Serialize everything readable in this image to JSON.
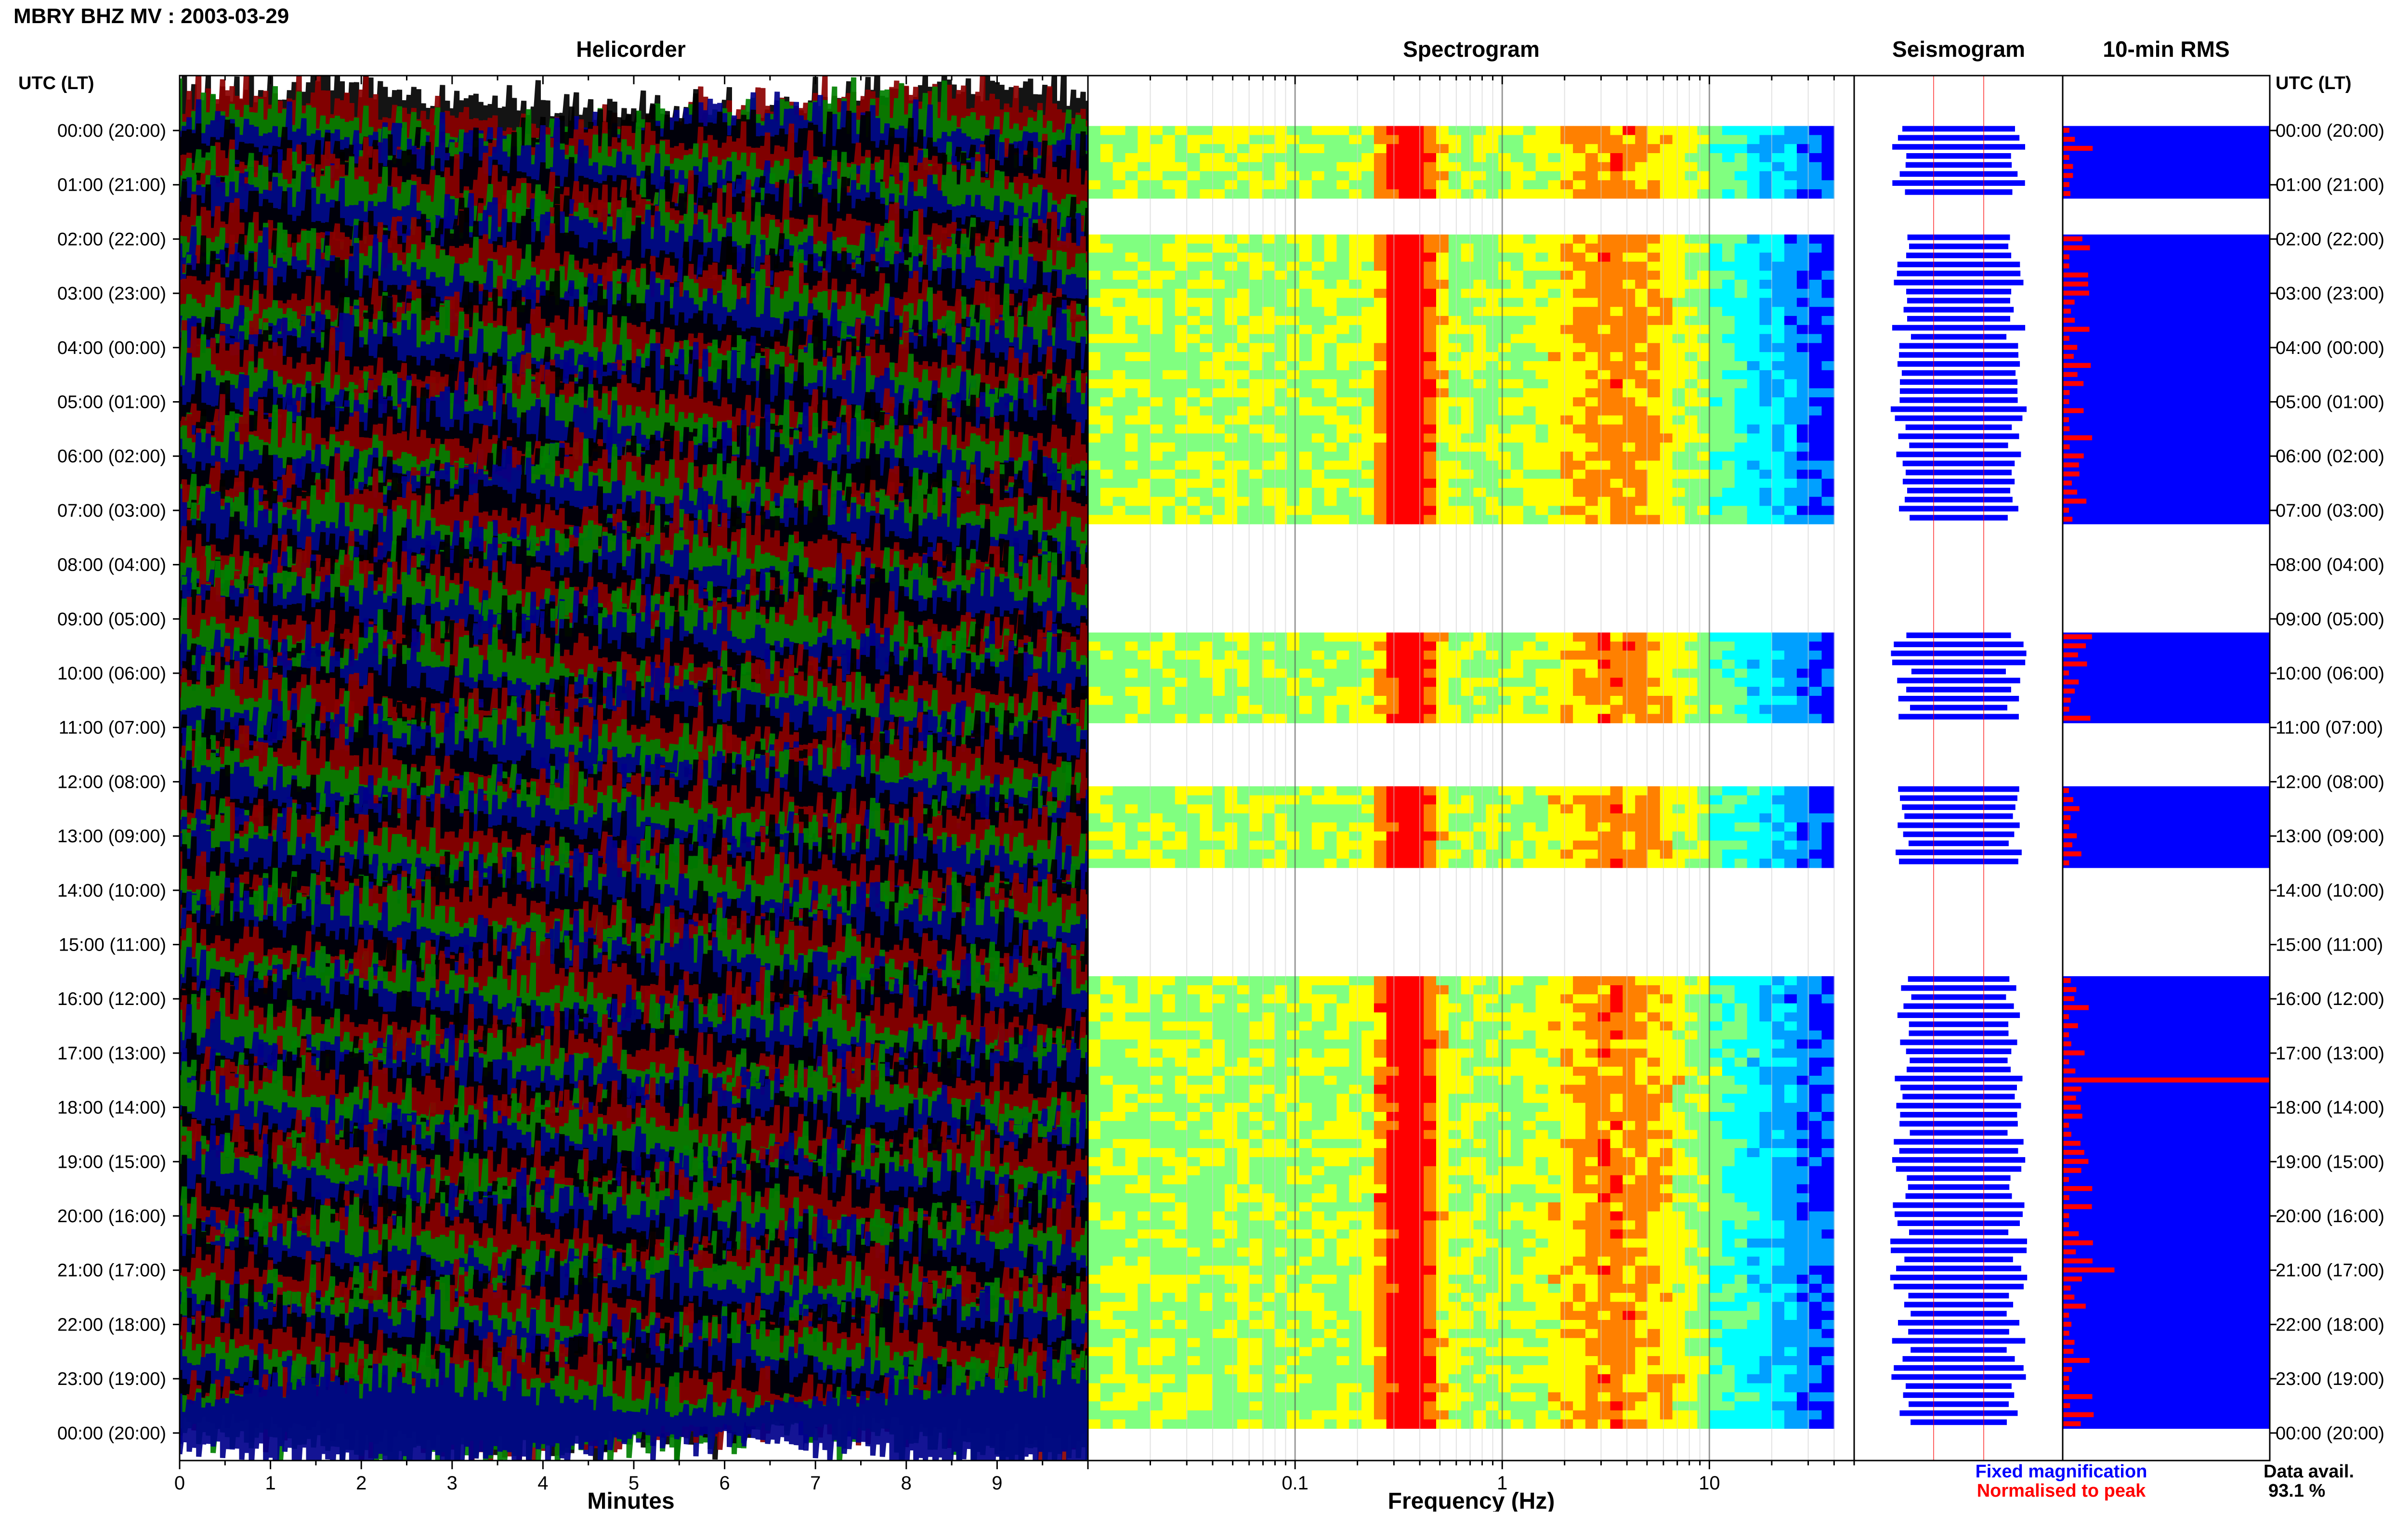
{
  "title": "MBRY BHZ MV : 2003-03-29",
  "panels": {
    "helicorder": "Helicorder",
    "spectrogram": "Spectrogram",
    "seismogram": "Seismogram",
    "rms": "10-min RMS"
  },
  "time_header_left": "UTC (LT)",
  "time_header_right": "UTC (LT)",
  "footer": {
    "fixed_label": "Fixed magnification",
    "normalised_label": "Normalised to peak",
    "data_avail_label": "Data avail.",
    "data_avail_value": "93.1 %"
  },
  "colors": {
    "helicorder_traces": [
      "#000000",
      "#8b0000",
      "#008000",
      "#00008b"
    ],
    "fixed": "#0000ff",
    "normalised": "#ff0000"
  },
  "chart_data": [
    {
      "type": "line",
      "title": "Helicorder",
      "xlabel": "Minutes",
      "x_ticks": [
        "0",
        "1",
        "2",
        "3",
        "4",
        "5",
        "6",
        "7",
        "8",
        "9"
      ],
      "xlim": [
        0,
        10
      ],
      "row_labels": [
        "00:00 (20:00)",
        "01:00 (21:00)",
        "02:00 (22:00)",
        "03:00 (23:00)",
        "04:00 (00:00)",
        "05:00 (01:00)",
        "06:00 (02:00)",
        "07:00 (03:00)",
        "08:00 (04:00)",
        "09:00 (05:00)",
        "10:00 (06:00)",
        "11:00 (07:00)",
        "12:00 (08:00)",
        "13:00 (09:00)",
        "14:00 (10:00)",
        "15:00 (11:00)",
        "16:00 (12:00)",
        "17:00 (13:00)",
        "18:00 (14:00)",
        "19:00 (15:00)",
        "20:00 (16:00)",
        "21:00 (17:00)",
        "22:00 (18:00)",
        "23:00 (19:00)",
        "00:00 (20:00)"
      ],
      "rows_per_hour": 6,
      "hours": 24
    },
    {
      "type": "heatmap",
      "title": "Spectrogram",
      "xlabel": "Frequency (Hz)",
      "x_scale": "log",
      "xlim": [
        0.01,
        50
      ],
      "x_ticks": [
        "0.1",
        "1",
        "10"
      ],
      "x_tick_values": [
        0.1,
        1,
        10
      ],
      "peak_bands_hz": [
        0.3,
        0.4,
        3.5
      ],
      "colormap": [
        "#0000ff",
        "#00a0ff",
        "#00ffff",
        "#80ff80",
        "#ffff00",
        "#ff8000",
        "#ff0000"
      ]
    },
    {
      "type": "line",
      "title": "Seismogram"
    },
    {
      "type": "bar",
      "title": "10-min RMS",
      "orientation": "horizontal",
      "series": [
        {
          "name": "Fixed magnification"
        },
        {
          "name": "Normalised to peak"
        }
      ]
    }
  ]
}
